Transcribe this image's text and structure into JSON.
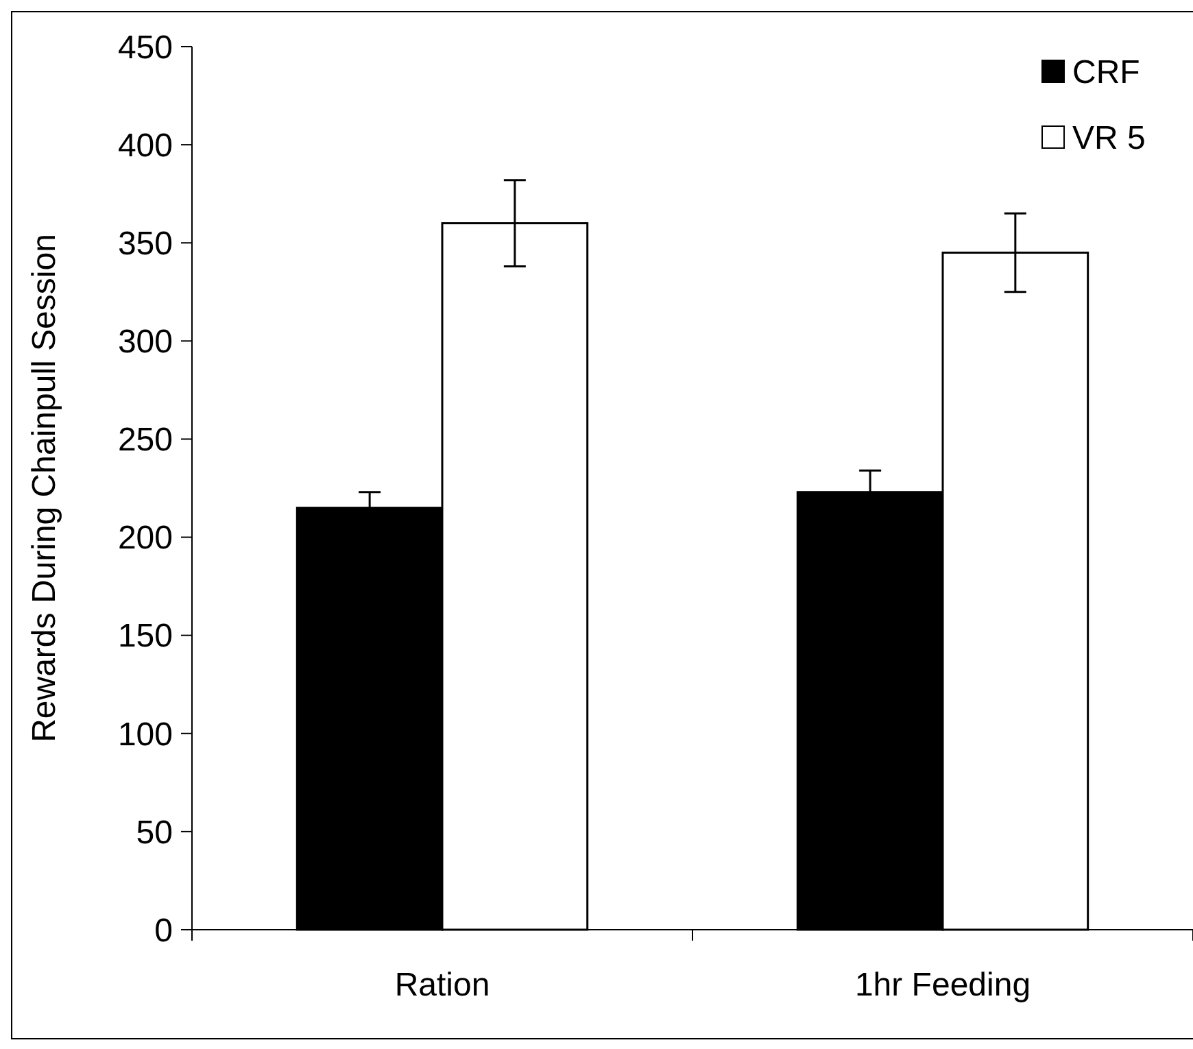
{
  "chart_data": {
    "type": "bar",
    "ylabel": "Rewards During Chainpull Session",
    "categories": [
      "Ration",
      "1hr Feeding"
    ],
    "series": [
      {
        "name": "CRF",
        "color": "#000000",
        "values": [
          215,
          223
        ],
        "errors": [
          8,
          11
        ]
      },
      {
        "name": "VR 5",
        "color": "#ffffff",
        "values": [
          360,
          345
        ],
        "errors": [
          22,
          20
        ]
      }
    ],
    "ylim": [
      0,
      450
    ],
    "yticks": [
      0,
      50,
      100,
      150,
      200,
      250,
      300,
      350,
      400,
      450
    ],
    "grid": false,
    "legend": "top right"
  }
}
